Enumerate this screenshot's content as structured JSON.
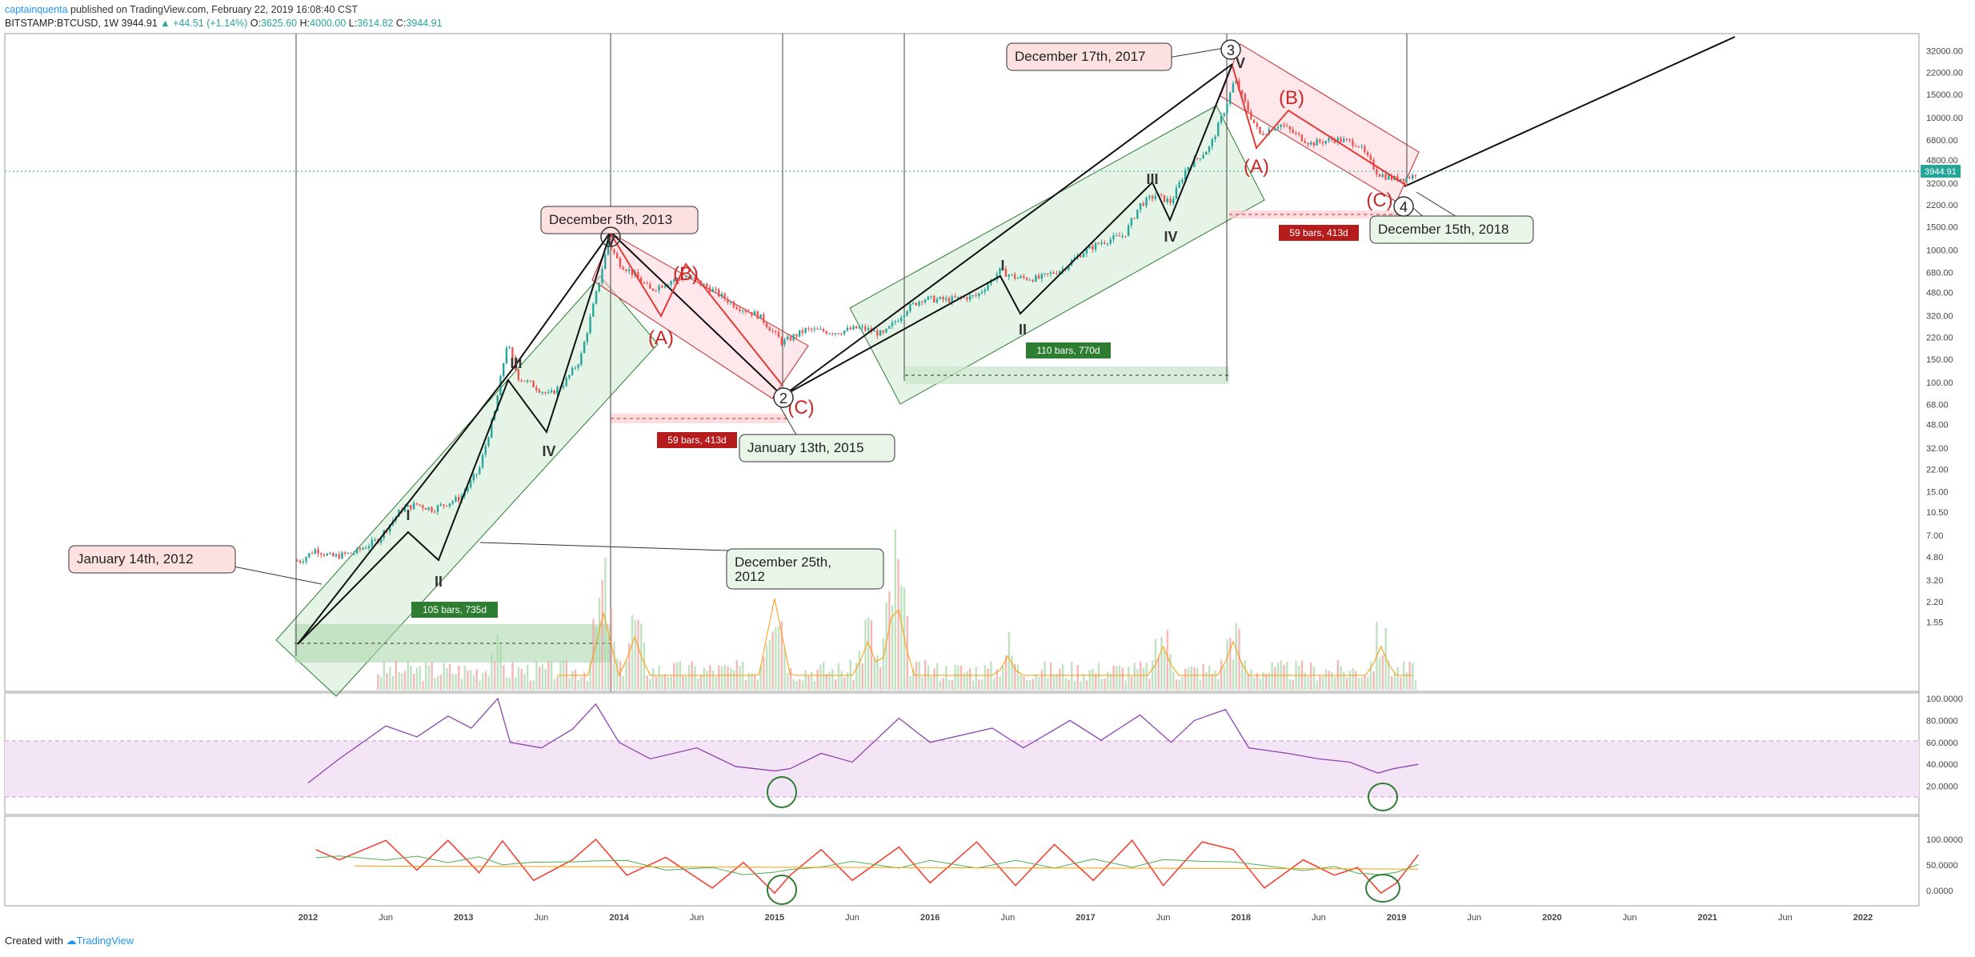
{
  "header": {
    "author": "captainquenta",
    "published_text": "published on TradingView.com, February 22, 2019 16:08:40 CST",
    "symbol": "BITSTAMP:BTCUSD, 1W",
    "last": "3944.91",
    "change": "▲ +44.51 (+1.14%)",
    "o_label": "O:",
    "o_value": "3625.60",
    "h_label": "H:",
    "h_value": "4000.00",
    "l_label": "L:",
    "l_value": "3614.82",
    "c_label": "C:",
    "c_value": "3944.91"
  },
  "footer": {
    "created_with": "Created with",
    "brand": "TradingView"
  },
  "colors": {
    "up": "#26a69a",
    "down": "#ef5350",
    "green_box": "#c8e6c9",
    "red_box": "#ffcdd2",
    "rsi": "#8e44ad",
    "rsi_band": "#f3e5f5",
    "stoch_k": "#f44336",
    "stoch_d": "#4caf50",
    "stoch_sma": "#ff9800"
  },
  "chart_data": {
    "type": "line",
    "title": "BITSTAMP:BTCUSD, 1W",
    "y_scale": "log",
    "x_tick_labels": [
      "2012",
      "Jun",
      "2013",
      "Jun",
      "2014",
      "Jun",
      "2015",
      "Jun",
      "2016",
      "Jun",
      "2017",
      "Jun",
      "2018",
      "Jun",
      "2019",
      "Jun",
      "2020",
      "Jun",
      "2021",
      "Jun",
      "2022"
    ],
    "price_axis_labels": [
      "32000.00",
      "22000.00",
      "15000.00",
      "10000.00",
      "6800.00",
      "4800.00",
      "3200.00",
      "2200.00",
      "1500.00",
      "1000.00",
      "680.00",
      "480.00",
      "320.00",
      "220.00",
      "150.00",
      "100.00",
      "68.00",
      "48.00",
      "32.00",
      "22.00",
      "15.00",
      "10.50",
      "7.00",
      "4.80",
      "3.20",
      "2.20",
      "1.55"
    ],
    "price_axis_values": [
      32000,
      22000,
      15000,
      10000,
      6800,
      4800,
      3200,
      2200,
      1500,
      1000,
      680,
      480,
      320,
      220,
      150,
      100,
      68,
      48,
      32,
      22,
      15,
      10.5,
      7,
      4.8,
      3.2,
      2.2,
      1.55
    ],
    "last_price_label": "3944.91",
    "last_price": 3944.91,
    "series": [
      {
        "name": "BTCUSD weekly (approx.)",
        "points": [
          [
            2011.95,
            4.5
          ],
          [
            2012.05,
            5.5
          ],
          [
            2012.15,
            4.8
          ],
          [
            2012.3,
            5.2
          ],
          [
            2012.45,
            6.5
          ],
          [
            2012.6,
            11
          ],
          [
            2012.7,
            12
          ],
          [
            2012.8,
            11
          ],
          [
            2012.98,
            13.5
          ],
          [
            2013.1,
            22
          ],
          [
            2013.2,
            60
          ],
          [
            2013.28,
            200
          ],
          [
            2013.35,
            110
          ],
          [
            2013.45,
            95
          ],
          [
            2013.55,
            80
          ],
          [
            2013.65,
            100
          ],
          [
            2013.75,
            150
          ],
          [
            2013.85,
            450
          ],
          [
            2013.93,
            1150
          ],
          [
            2014.0,
            800
          ],
          [
            2014.1,
            650
          ],
          [
            2014.2,
            500
          ],
          [
            2014.35,
            600
          ],
          [
            2014.45,
            620
          ],
          [
            2014.6,
            500
          ],
          [
            2014.75,
            380
          ],
          [
            2014.9,
            320
          ],
          [
            2015.05,
            200
          ],
          [
            2015.2,
            250
          ],
          [
            2015.4,
            240
          ],
          [
            2015.55,
            260
          ],
          [
            2015.7,
            230
          ],
          [
            2015.85,
            360
          ],
          [
            2015.95,
            430
          ],
          [
            2016.1,
            420
          ],
          [
            2016.3,
            450
          ],
          [
            2016.45,
            700
          ],
          [
            2016.55,
            620
          ],
          [
            2016.7,
            610
          ],
          [
            2016.85,
            720
          ],
          [
            2016.98,
            960
          ],
          [
            2017.1,
            1150
          ],
          [
            2017.25,
            1300
          ],
          [
            2017.35,
            2200
          ],
          [
            2017.45,
            2600
          ],
          [
            2017.55,
            2300
          ],
          [
            2017.65,
            4200
          ],
          [
            2017.8,
            6000
          ],
          [
            2017.9,
            12000
          ],
          [
            2017.96,
            19500
          ],
          [
            2018.05,
            11000
          ],
          [
            2018.12,
            7500
          ],
          [
            2018.25,
            9000
          ],
          [
            2018.35,
            7500
          ],
          [
            2018.45,
            6400
          ],
          [
            2018.6,
            6900
          ],
          [
            2018.75,
            6400
          ],
          [
            2018.88,
            3800
          ],
          [
            2018.98,
            3450
          ],
          [
            2019.1,
            3600
          ],
          [
            2019.14,
            3944.91
          ]
        ]
      },
      {
        "name": "Volume (relative)",
        "points": [
          [
            2013.2,
            0.35
          ],
          [
            2013.9,
            0.8
          ],
          [
            2014.1,
            0.55
          ],
          [
            2015.0,
            0.95
          ],
          [
            2015.6,
            0.5
          ],
          [
            2015.78,
            1.0
          ],
          [
            2016.5,
            0.35
          ],
          [
            2017.5,
            0.45
          ],
          [
            2017.95,
            0.5
          ],
          [
            2018.9,
            0.45
          ]
        ]
      },
      {
        "name": "RSI",
        "points": [
          [
            2012.0,
            23
          ],
          [
            2012.2,
            45
          ],
          [
            2012.5,
            75
          ],
          [
            2012.7,
            65
          ],
          [
            2012.9,
            84
          ],
          [
            2013.05,
            73
          ],
          [
            2013.22,
            100
          ],
          [
            2013.3,
            60
          ],
          [
            2013.5,
            55
          ],
          [
            2013.7,
            72
          ],
          [
            2013.85,
            95
          ],
          [
            2014.0,
            60
          ],
          [
            2014.2,
            45
          ],
          [
            2014.5,
            55
          ],
          [
            2014.75,
            38
          ],
          [
            2015.0,
            34
          ],
          [
            2015.1,
            36
          ],
          [
            2015.3,
            50
          ],
          [
            2015.5,
            42
          ],
          [
            2015.8,
            82
          ],
          [
            2016.0,
            60
          ],
          [
            2016.4,
            73
          ],
          [
            2016.6,
            55
          ],
          [
            2016.9,
            80
          ],
          [
            2017.1,
            62
          ],
          [
            2017.35,
            85
          ],
          [
            2017.55,
            60
          ],
          [
            2017.7,
            80
          ],
          [
            2017.9,
            90
          ],
          [
            2018.05,
            55
          ],
          [
            2018.3,
            50
          ],
          [
            2018.5,
            45
          ],
          [
            2018.7,
            42
          ],
          [
            2018.88,
            32
          ],
          [
            2018.98,
            36
          ],
          [
            2019.14,
            40
          ]
        ]
      },
      {
        "name": "Stochastic %K",
        "points": [
          [
            2012.05,
            80
          ],
          [
            2012.2,
            60
          ],
          [
            2012.5,
            98
          ],
          [
            2012.7,
            40
          ],
          [
            2012.9,
            98
          ],
          [
            2013.1,
            35
          ],
          [
            2013.25,
            97
          ],
          [
            2013.45,
            20
          ],
          [
            2013.7,
            60
          ],
          [
            2013.85,
            100
          ],
          [
            2014.05,
            30
          ],
          [
            2014.3,
            65
          ],
          [
            2014.6,
            5
          ],
          [
            2014.8,
            55
          ],
          [
            2015.0,
            -5
          ],
          [
            2015.1,
            30
          ],
          [
            2015.3,
            80
          ],
          [
            2015.5,
            20
          ],
          [
            2015.8,
            85
          ],
          [
            2016.0,
            15
          ],
          [
            2016.3,
            95
          ],
          [
            2016.55,
            10
          ],
          [
            2016.8,
            90
          ],
          [
            2017.05,
            20
          ],
          [
            2017.3,
            98
          ],
          [
            2017.5,
            10
          ],
          [
            2017.75,
            95
          ],
          [
            2017.95,
            80
          ],
          [
            2018.15,
            5
          ],
          [
            2018.4,
            60
          ],
          [
            2018.6,
            30
          ],
          [
            2018.75,
            45
          ],
          [
            2018.9,
            -5
          ],
          [
            2019.0,
            15
          ],
          [
            2019.14,
            70
          ]
        ]
      }
    ],
    "rsi_axis_labels": [
      "100.0000",
      "80.0000",
      "60.0000",
      "40.0000",
      "20.0000"
    ],
    "stoch_axis_labels": [
      "100.0000",
      "50.0000",
      "0.0000"
    ],
    "callouts": [
      {
        "text": "January 14th, 2012"
      },
      {
        "text": "December 5th, 2013"
      },
      {
        "text": "December 25th,",
        "text2": "2012"
      },
      {
        "text": "January 13th, 2015"
      },
      {
        "text": "December 17th, 2017"
      },
      {
        "text": "December 15th, 2018"
      }
    ],
    "wave_labels": {
      "impulse": [
        "I",
        "II",
        "III",
        "IV",
        "V"
      ],
      "corrective": [
        "(A)",
        "(B)",
        "(C)"
      ],
      "circled": [
        "2",
        "3",
        "4"
      ]
    },
    "bar_count_labels": [
      "105 bars, 735d",
      "59 bars, 413d",
      "110 bars, 770d",
      "59 bars, 413d"
    ]
  }
}
